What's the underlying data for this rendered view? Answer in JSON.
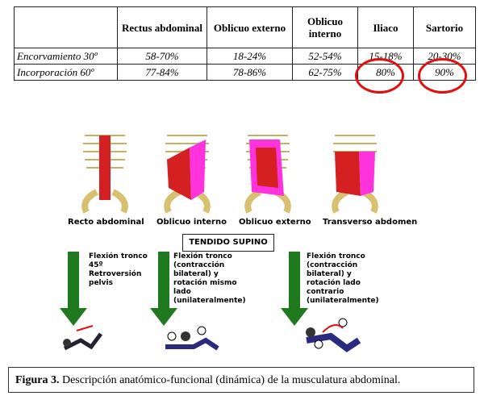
{
  "table": {
    "headers": [
      "",
      "Rectus abdominal",
      "Oblicuo externo",
      "Oblicuo interno",
      "Iliaco",
      "Sartorio"
    ],
    "rows": [
      {
        "label": "Encorvamiento 30º",
        "values": [
          "58-70%",
          "18-24%",
          "52-54%",
          "15-18%",
          "20-30%"
        ]
      },
      {
        "label": "Incorporación 60º",
        "values": [
          "77-84%",
          "78-86%",
          "62-75%",
          "80%",
          "90%"
        ]
      }
    ]
  },
  "muscles": [
    "Recto abdominal",
    "Oblicuo interno",
    "Oblicuo externo",
    "Transverso abdomen"
  ],
  "position_label": "TENDIDO SUPINO",
  "movements": [
    "Flexión tronco\n45º\nRetroversión\npelvis",
    "Flexión tronco\n(contracción\nbilateral) y\nrotación mismo\nlado\n(unilateralmente)",
    "Flexión tronco\n(contracción\nbilateral) y\nrotación lado\ncontrario\n(unilateralmente)"
  ],
  "caption": {
    "bold": "Figura 3.",
    "text": " Descripción anatómico-funcional (dinámica) de la musculatura abdominal."
  },
  "colors": {
    "highlight": "#e01010",
    "arrow": "#1f7a1f",
    "muscle_red": "#d42020",
    "muscle_pink": "#ff33dd"
  }
}
